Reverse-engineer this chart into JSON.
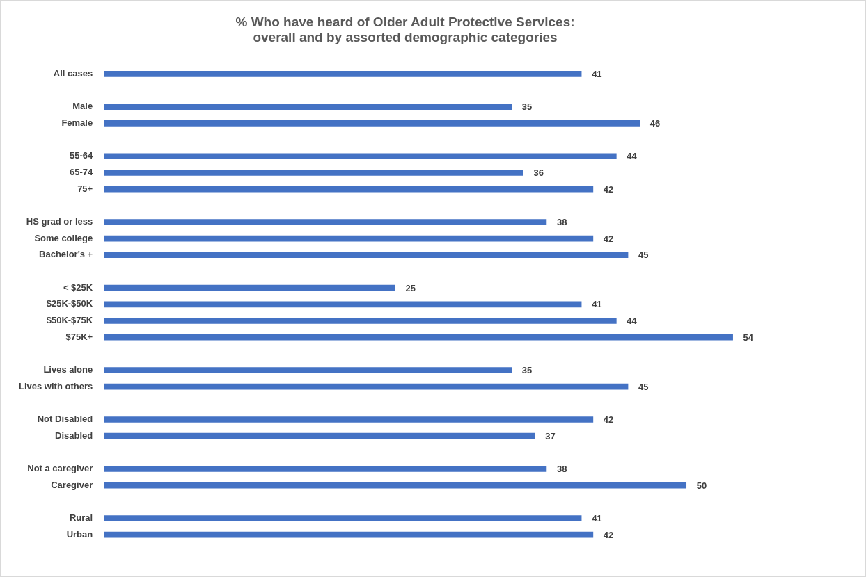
{
  "chart_data": {
    "type": "bar",
    "orientation": "horizontal",
    "title": "% Who have heard of Older Adult Protective Services:\noverall and by assorted demographic categories",
    "categories": [
      "All cases",
      null,
      "Male",
      "Female",
      null,
      "55-64",
      "65-74",
      "75+",
      null,
      "HS grad or less",
      "Some college",
      "Bachelor's +",
      null,
      "< $25K",
      "$25K-$50K",
      "$50K-$75K",
      "$75K+",
      null,
      "Lives alone",
      "Lives with others",
      null,
      "Not Disabled",
      "Disabled",
      null,
      "Not a caregiver",
      "Caregiver",
      null,
      "Rural",
      "Urban"
    ],
    "values": [
      41,
      null,
      35,
      46,
      null,
      44,
      36,
      42,
      null,
      38,
      42,
      45,
      null,
      25,
      41,
      44,
      54,
      null,
      35,
      45,
      null,
      42,
      37,
      null,
      38,
      50,
      null,
      41,
      42
    ],
    "color": "#4472c4",
    "data_labels": true
  }
}
